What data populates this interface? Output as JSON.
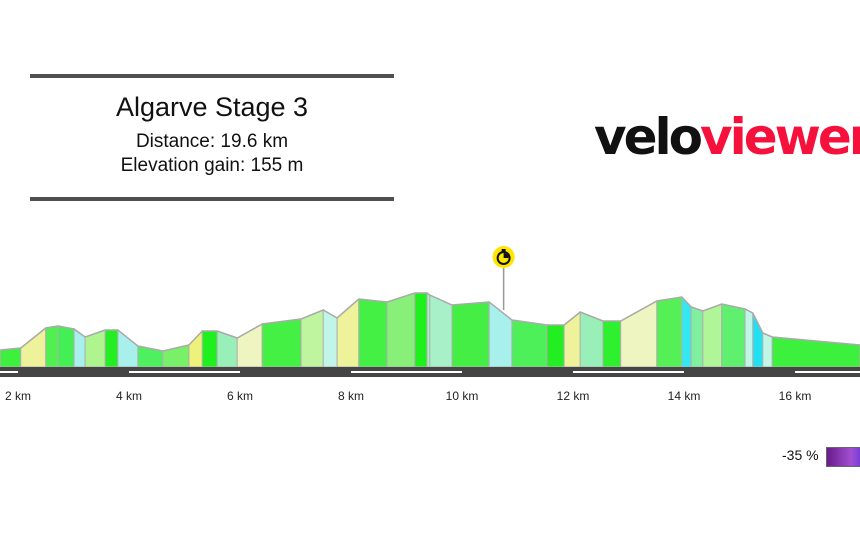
{
  "header": {
    "title": "Algarve Stage 3",
    "distance": "Distance: 19.6 km",
    "elevation_gain": "Elevation gain: 155 m"
  },
  "logo": {
    "part1": "velo",
    "part2": "viewer",
    "colors": {
      "velo": "#111111",
      "viewer": "#f5113c"
    }
  },
  "legend": {
    "label": "-35 %",
    "gradient_colors": [
      "#6a1a8a",
      "#a050d0",
      "#5a30e0"
    ]
  },
  "marker": {
    "icon": "stopwatch-icon",
    "km": 10.75,
    "color": "#ffe600"
  },
  "chart_data": {
    "type": "area",
    "title": "",
    "xlabel": "",
    "ylabel": "",
    "x_unit": "km",
    "x_ticks": [
      "2 km",
      "4 km",
      "6 km",
      "8 km",
      "10 km",
      "12 km",
      "14 km",
      "16 km"
    ],
    "x_tick_values": [
      2,
      4,
      6,
      8,
      10,
      12,
      14,
      16
    ],
    "xlim": [
      1.68,
      17.17
    ],
    "profile_km": [
      1.68,
      2.05,
      2.5,
      2.72,
      3.01,
      3.21,
      3.57,
      3.8,
      4.16,
      4.61,
      5.08,
      5.32,
      5.59,
      5.95,
      6.4,
      7.1,
      7.5,
      7.75,
      8.14,
      8.65,
      9.15,
      9.37,
      9.42,
      9.82,
      10.49,
      10.9,
      11.53,
      11.84,
      12.13,
      12.54,
      12.86,
      13.51,
      13.96,
      14.13,
      14.34,
      14.68,
      15.1,
      15.24,
      15.42,
      15.59,
      17.17
    ],
    "relative_elevation": [
      17,
      19,
      39,
      41,
      38,
      30,
      37,
      37,
      21,
      16,
      22,
      36,
      36,
      29,
      43,
      48,
      57,
      49,
      68,
      65,
      74,
      74,
      72,
      62,
      65,
      47,
      42,
      42,
      55,
      46,
      46,
      66,
      70,
      60,
      56,
      63,
      58,
      54,
      34,
      30,
      22
    ],
    "segment_colors": [
      "#3ef03e",
      "#eef29a",
      "#4ff04f",
      "#44ee55",
      "#a8f0ec",
      "#aef590",
      "#22ee22",
      "#a8f0ec",
      "#4ef060",
      "#78f068",
      "#eef27a",
      "#1ef01e",
      "#98f0b8",
      "#eef5c0",
      "#44f044",
      "#c0f5a0",
      "#c0f5e8",
      "#eef29a",
      "#44f044",
      "#88f078",
      "#1ef01e",
      "#a8f0c8",
      "#a8f0c8",
      "#44ee44",
      "#a8f0ec",
      "#4ef05a",
      "#22ee22",
      "#eef29a",
      "#98f0b8",
      "#2ef02e",
      "#eef5c0",
      "#55f055",
      "#33e8f0",
      "#80f0a0",
      "#b0f598",
      "#60f070",
      "#c0f5e8",
      "#22e0f0",
      "#c0f5e8",
      "#3ef03e"
    ],
    "grid": false
  }
}
